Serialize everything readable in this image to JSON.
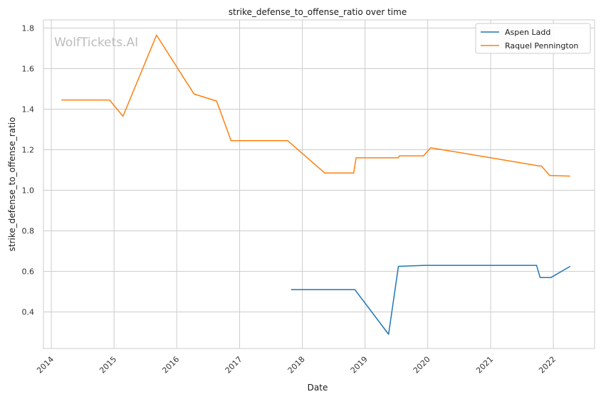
{
  "chart_data": {
    "type": "line",
    "title": "strike_defense_to_offense_ratio over time",
    "xlabel": "Date",
    "ylabel": "strike_defense_to_offense_ratio",
    "watermark": "WolfTickets.AI",
    "x_tick_labels": [
      "2014",
      "2015",
      "2016",
      "2017",
      "2018",
      "2019",
      "2020",
      "2021",
      "2022"
    ],
    "y_tick_labels": [
      "0.4",
      "0.6",
      "0.8",
      "1.0",
      "1.2",
      "1.4",
      "1.6",
      "1.8"
    ],
    "xlim": [
      "2013-11-16",
      "2022-08-29"
    ],
    "ylim": [
      0.22,
      1.84
    ],
    "grid": true,
    "legend_position": "top-right",
    "series": [
      {
        "name": "Aspen Ladd",
        "color": "#1f77b4",
        "points": [
          {
            "x": "2017-10-27",
            "y": 0.51
          },
          {
            "x": "2018-11-03",
            "y": 0.51
          },
          {
            "x": "2019-05-18",
            "y": 0.29
          },
          {
            "x": "2019-07-14",
            "y": 0.625
          },
          {
            "x": "2019-12-14",
            "y": 0.63
          },
          {
            "x": "2021-09-25",
            "y": 0.63
          },
          {
            "x": "2021-10-16",
            "y": 0.57
          },
          {
            "x": "2021-12-18",
            "y": 0.57
          },
          {
            "x": "2022-04-09",
            "y": 0.625
          }
        ]
      },
      {
        "name": "Raquel Pennington",
        "color": "#ff7f0e",
        "points": [
          {
            "x": "2014-03-01",
            "y": 1.445
          },
          {
            "x": "2014-12-06",
            "y": 1.445
          },
          {
            "x": "2015-02-22",
            "y": 1.365
          },
          {
            "x": "2015-09-05",
            "y": 1.765
          },
          {
            "x": "2016-04-10",
            "y": 1.475
          },
          {
            "x": "2016-08-20",
            "y": 1.44
          },
          {
            "x": "2016-11-12",
            "y": 1.245
          },
          {
            "x": "2017-10-07",
            "y": 1.245
          },
          {
            "x": "2018-05-12",
            "y": 1.085
          },
          {
            "x": "2018-10-27",
            "y": 1.085
          },
          {
            "x": "2018-11-10",
            "y": 1.16
          },
          {
            "x": "2019-07-13",
            "y": 1.16
          },
          {
            "x": "2019-07-20",
            "y": 1.17
          },
          {
            "x": "2019-12-07",
            "y": 1.17
          },
          {
            "x": "2020-01-18",
            "y": 1.21
          },
          {
            "x": "2021-10-09",
            "y": 1.12
          },
          {
            "x": "2021-10-23",
            "y": 1.12
          },
          {
            "x": "2021-12-11",
            "y": 1.073
          },
          {
            "x": "2022-04-09",
            "y": 1.07
          }
        ]
      }
    ]
  }
}
